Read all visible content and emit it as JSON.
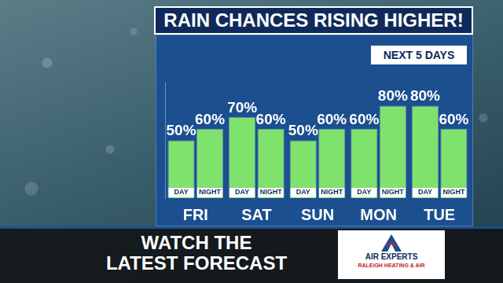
{
  "chart_data": {
    "type": "bar",
    "title": "RAIN CHANCES RISING HIGHER!",
    "subtitle": "NEXT 5 DAYS",
    "categories": [
      "FRI",
      "SAT",
      "SUN",
      "MON",
      "TUE"
    ],
    "series": [
      {
        "name": "DAY",
        "color": "#7fe26d",
        "values": [
          50,
          70,
          50,
          60,
          80
        ],
        "value_labels": [
          "50%",
          "70%",
          "50%",
          "60%",
          "80%"
        ]
      },
      {
        "name": "NIGHT",
        "color": "#7fe26d",
        "values": [
          60,
          60,
          60,
          80,
          60
        ],
        "value_labels": [
          "60%",
          "60%",
          "60%",
          "80%",
          "60%"
        ]
      }
    ],
    "ylim": [
      0,
      100
    ],
    "yticks": [],
    "grid": false,
    "data_labels": true,
    "tick_labels": "x",
    "annotations": [
      "WATCH THE\nLATEST FORECAST",
      "AIR EXPERTS",
      "RALEIGH HEATING & AIR"
    ]
  }
}
